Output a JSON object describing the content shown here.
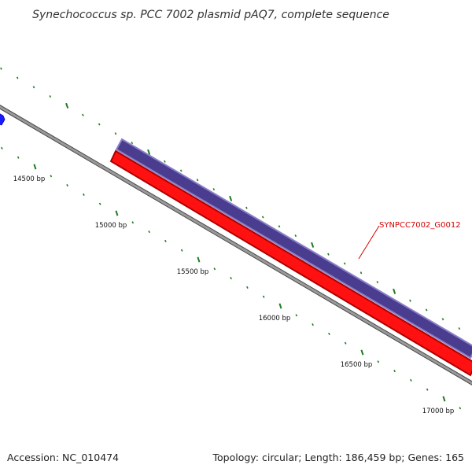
{
  "title": "Synechococcus sp. PCC 7002 plasmid pAQ7, complete sequence",
  "footer": {
    "accession": "Accession: NC_010474",
    "summary": "Topology: circular; Length: 186,459 bp; Genes: 165"
  },
  "colors": {
    "backbone": "#8c8c8c",
    "backbone_edge": "#4a4a4a",
    "tick": "#1e7a1e",
    "forward_feature": "#4a3d8f",
    "forward_feature_edge": "#8a80c8",
    "reverse_feature": "#ff0000",
    "reverse_feature_edge": "#b00000",
    "blue_feature": "#1a1aff",
    "gene_label": "#d40000"
  },
  "ticks": [
    {
      "label": "14500 bp"
    },
    {
      "label": "15000 bp"
    },
    {
      "label": "15500 bp"
    },
    {
      "label": "16000 bp"
    },
    {
      "label": "16500 bp"
    },
    {
      "label": "17000 bp"
    }
  ],
  "features": [
    {
      "name": "SYNPCC7002_G0012",
      "strand": "forward",
      "color_key": "forward_feature"
    },
    {
      "strand": "reverse",
      "color_key": "reverse_feature"
    },
    {
      "strand": "forward",
      "color_key": "blue_feature"
    }
  ],
  "gene_label": "SYNPCC7002_G0012"
}
